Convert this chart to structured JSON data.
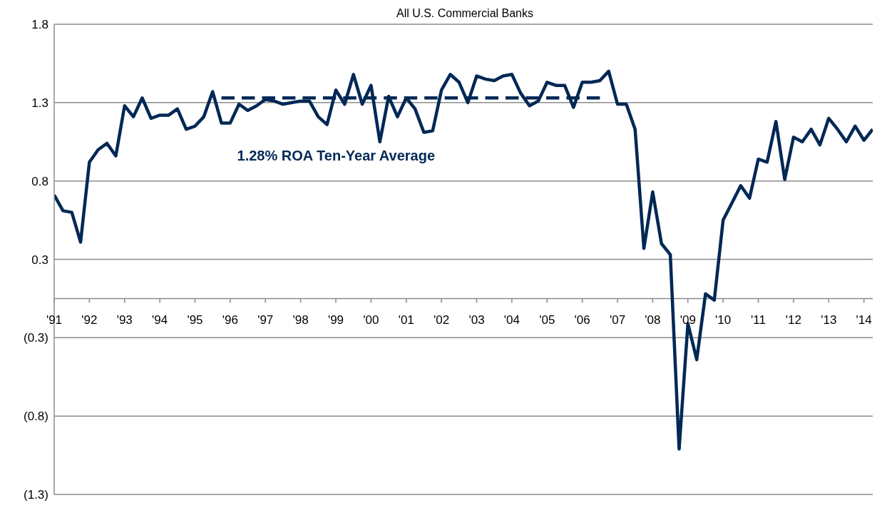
{
  "chart_data": {
    "type": "line",
    "title": "All U.S. Commercial Banks",
    "x": [
      1991,
      1991.25,
      1991.5,
      1991.75,
      1992,
      1992.25,
      1992.5,
      1992.75,
      1993,
      1993.25,
      1993.5,
      1993.75,
      1994,
      1994.25,
      1994.5,
      1994.75,
      1995,
      1995.25,
      1995.5,
      1995.75,
      1996,
      1996.25,
      1996.5,
      1996.75,
      1997,
      1997.25,
      1997.5,
      1997.75,
      1998,
      1998.25,
      1998.5,
      1998.75,
      1999,
      1999.25,
      1999.5,
      1999.75,
      2000,
      2000.25,
      2000.5,
      2000.75,
      2001,
      2001.25,
      2001.5,
      2001.75,
      2002,
      2002.25,
      2002.5,
      2002.75,
      2003,
      2003.25,
      2003.5,
      2003.75,
      2004,
      2004.25,
      2004.5,
      2004.75,
      2005,
      2005.25,
      2005.5,
      2005.75,
      2006,
      2006.25,
      2006.5,
      2006.75,
      2007,
      2007.25,
      2007.5,
      2007.75,
      2008,
      2008.25,
      2008.5,
      2008.75,
      2009,
      2009.25,
      2009.5,
      2009.75,
      2010,
      2010.25,
      2010.5,
      2010.75,
      2011,
      2011.25,
      2011.5,
      2011.75,
      2012,
      2012.25,
      2012.5,
      2012.75,
      2013,
      2013.25,
      2013.5,
      2013.75,
      2014,
      2014.25
    ],
    "series": [
      {
        "color": "#002855",
        "line_style": "solid",
        "values": [
          0.66,
          0.56,
          0.55,
          0.36,
          0.87,
          0.95,
          0.99,
          0.91,
          1.23,
          1.16,
          1.28,
          1.15,
          1.17,
          1.17,
          1.21,
          1.08,
          1.1,
          1.16,
          1.32,
          1.12,
          1.12,
          1.24,
          1.2,
          1.23,
          1.27,
          1.26,
          1.24,
          1.25,
          1.26,
          1.26,
          1.16,
          1.11,
          1.33,
          1.24,
          1.43,
          1.24,
          1.36,
          1.0,
          1.29,
          1.16,
          1.28,
          1.21,
          1.06,
          1.07,
          1.33,
          1.43,
          1.38,
          1.25,
          1.42,
          1.4,
          1.39,
          1.42,
          1.43,
          1.31,
          1.23,
          1.26,
          1.38,
          1.36,
          1.36,
          1.22,
          1.38,
          1.38,
          1.39,
          1.45,
          1.24,
          1.24,
          1.08,
          0.32,
          0.68,
          0.35,
          0.28,
          -0.96,
          -0.16,
          -0.39,
          0.03,
          -0.01,
          0.5,
          0.61,
          0.72,
          0.64,
          0.89,
          0.87,
          1.13,
          0.76,
          1.03,
          1.0,
          1.08,
          0.98,
          1.15,
          1.08,
          1.0,
          1.1,
          1.01,
          1.08
        ]
      },
      {
        "name": "1.28% ROA Ten-Year Average",
        "color": "#002855",
        "line_style": "dashed",
        "x": [
          1995.75,
          2006.5
        ],
        "values": [
          1.28,
          1.28
        ]
      }
    ],
    "xlim": [
      1991,
      2014.25
    ],
    "xticks": [
      {
        "value": 1991,
        "label": "'91"
      },
      {
        "value": 1992,
        "label": "'92"
      },
      {
        "value": 1993,
        "label": "'93"
      },
      {
        "value": 1994,
        "label": "'94"
      },
      {
        "value": 1995,
        "label": "'95"
      },
      {
        "value": 1996,
        "label": "'96"
      },
      {
        "value": 1997,
        "label": "'97"
      },
      {
        "value": 1998,
        "label": "'98"
      },
      {
        "value": 1999,
        "label": "'99"
      },
      {
        "value": 2000,
        "label": "'00"
      },
      {
        "value": 2001,
        "label": "'01"
      },
      {
        "value": 2002,
        "label": "'02"
      },
      {
        "value": 2003,
        "label": "'03"
      },
      {
        "value": 2004,
        "label": "'04"
      },
      {
        "value": 2005,
        "label": "'05"
      },
      {
        "value": 2006,
        "label": "'06"
      },
      {
        "value": 2007,
        "label": "'07"
      },
      {
        "value": 2008,
        "label": "'08"
      },
      {
        "value": 2009,
        "label": "'09"
      },
      {
        "value": 2010,
        "label": "'10"
      },
      {
        "value": 2011,
        "label": "'11"
      },
      {
        "value": 2012,
        "label": "'12"
      },
      {
        "value": 2013,
        "label": "'13"
      },
      {
        "value": 2014,
        "label": "'14"
      }
    ],
    "ylim": [
      -1.25,
      1.75
    ],
    "yticks": [
      {
        "value": -1.25,
        "label": "(1.3)"
      },
      {
        "value": -0.75,
        "label": "(0.8)"
      },
      {
        "value": -0.25,
        "label": "(0.3)"
      },
      {
        "value": 0.25,
        "label": "0.3"
      },
      {
        "value": 0.75,
        "label": "0.8"
      },
      {
        "value": 1.25,
        "label": "1.3"
      },
      {
        "value": 1.75,
        "label": "1.8"
      }
    ],
    "grid": "y",
    "marker": "none"
  }
}
